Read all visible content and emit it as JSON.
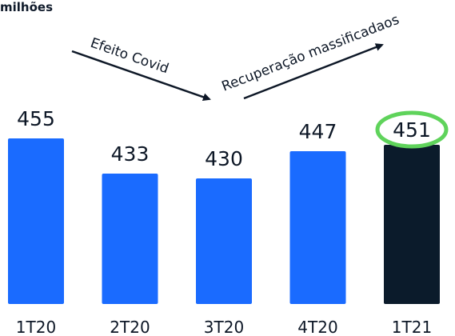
{
  "unit_label": "milhões",
  "chart_data": {
    "type": "bar",
    "categories": [
      "1T20",
      "2T20",
      "3T20",
      "4T20",
      "1T21"
    ],
    "values": [
      455,
      433,
      430,
      447,
      451
    ],
    "title": "",
    "xlabel": "",
    "ylabel": "",
    "grid": false,
    "colors": {
      "default": "#1a6bff",
      "highlight": "#0b1b2b",
      "highlight_circle": "#5fd35b"
    },
    "highlight_category": "1T21",
    "annotations": [
      {
        "text": "Efeito Covid",
        "from_category": "1T20",
        "to_category": "3T20"
      },
      {
        "text": "Recuperação massificadaos",
        "from_category": "3T20",
        "to_category": "1T21"
      }
    ]
  }
}
